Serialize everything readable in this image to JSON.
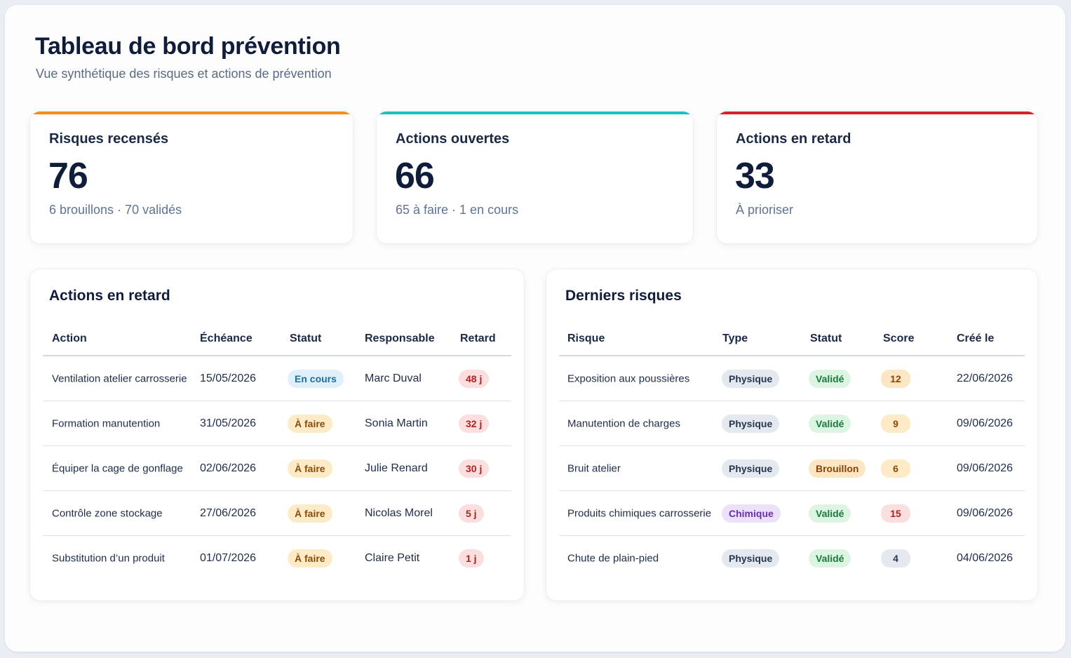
{
  "header": {
    "title": "Tableau de bord prévention",
    "subtitle": "Vue synthétique des risques et actions de prévention"
  },
  "kpis": [
    {
      "label": "Risques recensés",
      "value": "76",
      "note": "6 brouillons · 70 validés",
      "accent": "#f28c1c"
    },
    {
      "label": "Actions ouvertes",
      "value": "66",
      "note": "65 à faire · 1 en cours",
      "accent": "#1bbfbf"
    },
    {
      "label": "Actions en retard",
      "value": "33",
      "note": "À prioriser",
      "accent": "#d81f2a"
    }
  ],
  "late_actions": {
    "title": "Actions en retard",
    "columns": [
      "Action",
      "Échéance",
      "Statut",
      "Responsable",
      "Retard"
    ],
    "rows": [
      {
        "action": "Ventilation atelier carrosserie",
        "due": "15/05/2026",
        "status": "En cours",
        "owner": "Marc Duval",
        "delay": "48 j"
      },
      {
        "action": "Formation manutention",
        "due": "31/05/2026",
        "status": "À faire",
        "owner": "Sonia Martin",
        "delay": "32 j"
      },
      {
        "action": "Équiper la cage de gonflage",
        "due": "02/06/2026",
        "status": "À faire",
        "owner": "Julie Renard",
        "delay": "30 j"
      },
      {
        "action": "Contrôle zone stockage",
        "due": "27/06/2026",
        "status": "À faire",
        "owner": "Nicolas Morel",
        "delay": "5 j"
      },
      {
        "action": "Substitution d’un produit",
        "due": "01/07/2026",
        "status": "À faire",
        "owner": "Claire Petit",
        "delay": "1 j"
      }
    ]
  },
  "latest_risks": {
    "title": "Derniers risques",
    "columns": [
      "Risque",
      "Type",
      "Statut",
      "Score",
      "Créé le"
    ],
    "rows": [
      {
        "risk": "Exposition aux poussières",
        "type": "Physique",
        "status": "Validé",
        "score": "12",
        "created": "22/06/2026"
      },
      {
        "risk": "Manutention de charges",
        "type": "Physique",
        "status": "Validé",
        "score": "9",
        "created": "09/06/2026"
      },
      {
        "risk": "Bruit atelier",
        "type": "Physique",
        "status": "Brouillon",
        "score": "6",
        "created": "09/06/2026"
      },
      {
        "risk": "Produits chimiques carrosserie",
        "type": "Chimique",
        "status": "Validé",
        "score": "15",
        "created": "09/06/2026"
      },
      {
        "risk": "Chute de plain-pied",
        "type": "Physique",
        "status": "Validé",
        "score": "4",
        "created": "04/06/2026"
      }
    ]
  }
}
